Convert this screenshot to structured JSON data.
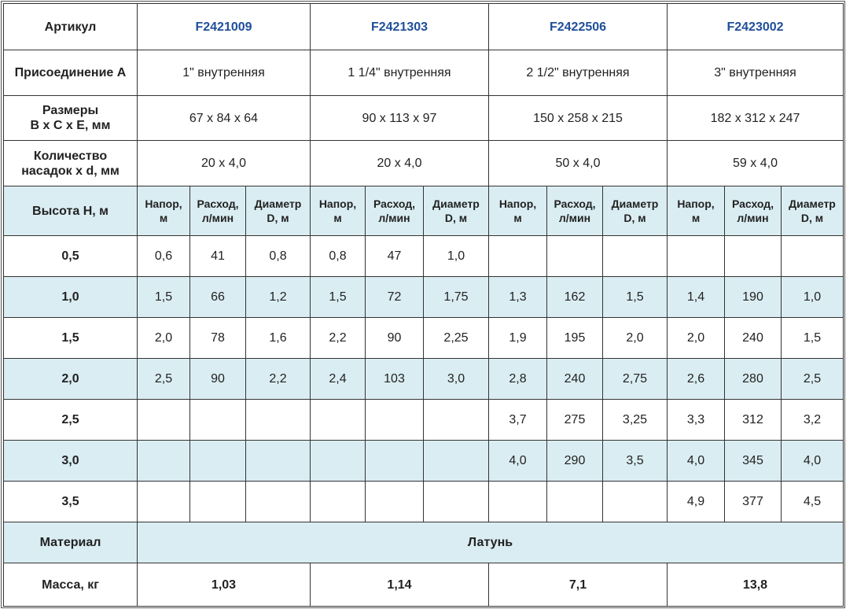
{
  "articles": {
    "label": "Артикул",
    "values": [
      "F2421009",
      "F2421303",
      "F2422506",
      "F2423002"
    ]
  },
  "connection": {
    "label": "Присоединение А",
    "values": [
      "1\" внутренняя",
      "1 1/4\" внутренняя",
      "2 1/2\" внутренняя",
      "3\" внутренняя"
    ]
  },
  "dimensions": {
    "label_line1": "Размеры",
    "label_line2": "B x C x E, мм",
    "values": [
      "67 x 84 x 64",
      "90 x 113 x 97",
      "150 x 258 x 215",
      "182 x 312 x 247"
    ]
  },
  "nozzles": {
    "label_line1": "Количество",
    "label_line2": "насадок x d, мм",
    "values": [
      "20 x 4,0",
      "20 x 4,0",
      "50 x 4,0",
      "59 x 4,0"
    ]
  },
  "height_header": {
    "label": "Высота H, м",
    "sub_columns": [
      {
        "line1": "Напор,",
        "line2": "м"
      },
      {
        "line1": "Расход,",
        "line2": "л/мин"
      },
      {
        "line1": "Диаметр",
        "line2": "D, м"
      }
    ]
  },
  "rows": [
    {
      "h": "0,5",
      "cells": [
        "0,6",
        "41",
        "0,8",
        "0,8",
        "47",
        "1,0",
        "",
        "",
        "",
        "",
        "",
        ""
      ]
    },
    {
      "h": "1,0",
      "cells": [
        "1,5",
        "66",
        "1,2",
        "1,5",
        "72",
        "1,75",
        "1,3",
        "162",
        "1,5",
        "1,4",
        "190",
        "1,0"
      ]
    },
    {
      "h": "1,5",
      "cells": [
        "2,0",
        "78",
        "1,6",
        "2,2",
        "90",
        "2,25",
        "1,9",
        "195",
        "2,0",
        "2,0",
        "240",
        "1,5"
      ]
    },
    {
      "h": "2,0",
      "cells": [
        "2,5",
        "90",
        "2,2",
        "2,4",
        "103",
        "3,0",
        "2,8",
        "240",
        "2,75",
        "2,6",
        "280",
        "2,5"
      ]
    },
    {
      "h": "2,5",
      "cells": [
        "",
        "",
        "",
        "",
        "",
        "",
        "3,7",
        "275",
        "3,25",
        "3,3",
        "312",
        "3,2"
      ]
    },
    {
      "h": "3,0",
      "cells": [
        "",
        "",
        "",
        "",
        "",
        "",
        "4,0",
        "290",
        "3,5",
        "4,0",
        "345",
        "4,0"
      ]
    },
    {
      "h": "3,5",
      "cells": [
        "",
        "",
        "",
        "",
        "",
        "",
        "",
        "",
        "",
        "4,9",
        "377",
        "4,5"
      ]
    }
  ],
  "material": {
    "label": "Материал",
    "value": "Латунь"
  },
  "mass": {
    "label": "Масса, кг",
    "values": [
      "1,03",
      "1,14",
      "7,1",
      "13,8"
    ]
  },
  "colors": {
    "article_blue": "#1f4e99",
    "shaded_row": "#daedf2",
    "border": "#333333"
  }
}
